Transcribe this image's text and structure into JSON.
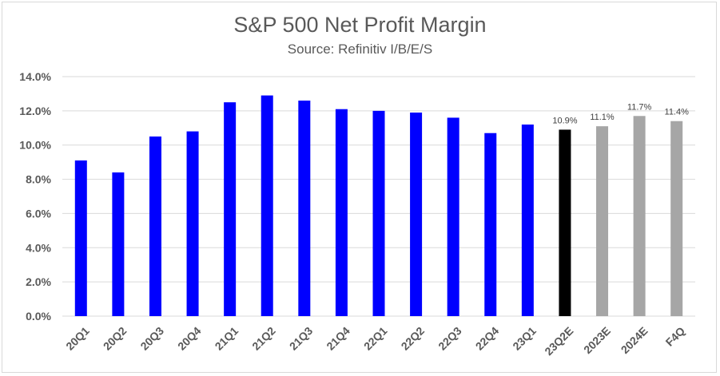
{
  "chart_data": {
    "type": "bar",
    "title": "S&P 500 Net Profit Margin",
    "subtitle": "Source: Refinitiv I/B/E/S",
    "categories": [
      "20Q1",
      "20Q2",
      "20Q3",
      "20Q4",
      "21Q1",
      "21Q2",
      "21Q3",
      "21Q4",
      "22Q1",
      "22Q2",
      "22Q3",
      "22Q4",
      "23Q1",
      "23Q2E",
      "2023E",
      "2024E",
      "F4Q"
    ],
    "values": [
      9.1,
      8.4,
      10.5,
      10.8,
      12.5,
      12.9,
      12.6,
      12.1,
      12.0,
      11.9,
      11.6,
      10.7,
      11.2,
      10.9,
      11.1,
      11.7,
      11.4
    ],
    "data_labels": [
      "",
      "",
      "",
      "",
      "",
      "",
      "",
      "",
      "",
      "",
      "",
      "",
      "",
      "10.9%",
      "11.1%",
      "11.7%",
      "11.4%"
    ],
    "bar_colors": [
      "#0000ff",
      "#0000ff",
      "#0000ff",
      "#0000ff",
      "#0000ff",
      "#0000ff",
      "#0000ff",
      "#0000ff",
      "#0000ff",
      "#0000ff",
      "#0000ff",
      "#0000ff",
      "#0000ff",
      "#000000",
      "#a6a6a6",
      "#a6a6a6",
      "#a6a6a6"
    ],
    "ylim": [
      0,
      14
    ],
    "yticks": [
      "0.0%",
      "2.0%",
      "4.0%",
      "6.0%",
      "8.0%",
      "10.0%",
      "12.0%",
      "14.0%"
    ],
    "grid": true,
    "gridline_color": "#d9d9d9"
  }
}
